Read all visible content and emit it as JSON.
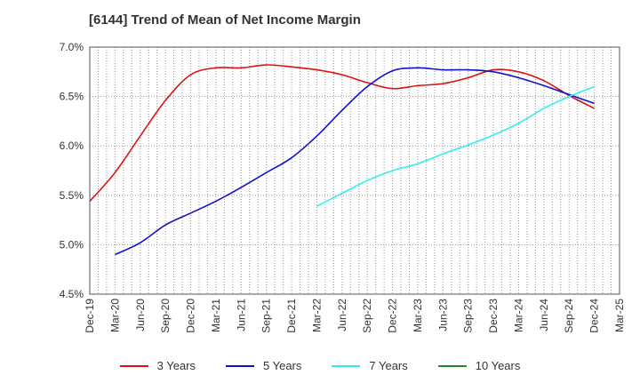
{
  "chart_data": {
    "type": "line",
    "title": "[6144]  Trend of Mean of Net Income Margin",
    "xlabel": "",
    "ylabel": "",
    "ylim": [
      4.5,
      7.0
    ],
    "yticks": [
      "4.5%",
      "5.0%",
      "5.5%",
      "6.0%",
      "6.5%",
      "7.0%"
    ],
    "x_tick_labels": [
      "Dec-19",
      "Mar-20",
      "Jun-20",
      "Sep-20",
      "Dec-20",
      "Mar-21",
      "Jun-21",
      "Sep-21",
      "Dec-21",
      "Mar-22",
      "Jun-22",
      "Sep-22",
      "Dec-22",
      "Mar-23",
      "Jun-23",
      "Sep-23",
      "Dec-23",
      "Mar-24",
      "Jun-24",
      "Sep-24",
      "Dec-24",
      "Mar-25"
    ],
    "grid": true,
    "legend_position": "bottom",
    "series": [
      {
        "name": "3 Years",
        "color": "#dd1111",
        "x": [
          "Dec-19",
          "Mar-20",
          "Jun-20",
          "Sep-20",
          "Dec-20",
          "Mar-21",
          "Jun-21",
          "Sep-21",
          "Dec-21",
          "Mar-22",
          "Jun-22",
          "Sep-22",
          "Dec-22",
          "Mar-23",
          "Jun-23",
          "Sep-23",
          "Dec-23",
          "Mar-24",
          "Jun-24",
          "Sep-24",
          "Dec-24"
        ],
        "values": [
          5.44,
          5.73,
          6.1,
          6.46,
          6.72,
          6.79,
          6.79,
          6.82,
          6.8,
          6.77,
          6.72,
          6.64,
          6.58,
          6.61,
          6.63,
          6.69,
          6.77,
          6.75,
          6.66,
          6.51,
          6.38
        ]
      },
      {
        "name": "5 Years",
        "color": "#1111cc",
        "x": [
          "Mar-20",
          "Jun-20",
          "Sep-20",
          "Dec-20",
          "Mar-21",
          "Jun-21",
          "Sep-21",
          "Dec-21",
          "Mar-22",
          "Jun-22",
          "Sep-22",
          "Dec-22",
          "Mar-23",
          "Jun-23",
          "Sep-23",
          "Dec-23",
          "Mar-24",
          "Jun-24",
          "Sep-24",
          "Dec-24"
        ],
        "values": [
          4.9,
          5.02,
          5.2,
          5.32,
          5.44,
          5.58,
          5.73,
          5.88,
          6.1,
          6.36,
          6.6,
          6.76,
          6.79,
          6.77,
          6.77,
          6.75,
          6.69,
          6.61,
          6.52,
          6.43
        ]
      },
      {
        "name": "7 Years",
        "color": "#33eeee",
        "x": [
          "Mar-22",
          "Jun-22",
          "Sep-22",
          "Dec-22",
          "Mar-23",
          "Jun-23",
          "Sep-23",
          "Dec-23",
          "Mar-24",
          "Jun-24",
          "Sep-24",
          "Dec-24"
        ],
        "values": [
          5.39,
          5.52,
          5.65,
          5.75,
          5.82,
          5.92,
          6.01,
          6.11,
          6.23,
          6.38,
          6.5,
          6.6
        ]
      },
      {
        "name": "10 Years",
        "color": "#228822",
        "x": [],
        "values": []
      }
    ]
  }
}
